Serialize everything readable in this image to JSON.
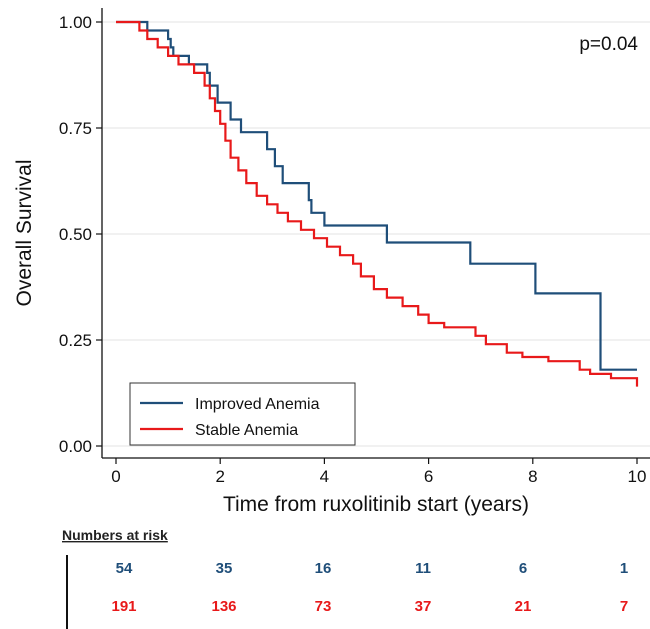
{
  "chart_data": {
    "type": "line",
    "subtype": "kaplan-meier step curve",
    "title": "",
    "xlabel": "Time from ruxolitinib start (years)",
    "ylabel": "Overall Survival",
    "xlim": [
      0,
      10
    ],
    "ylim": [
      0,
      1
    ],
    "xticks": [
      0,
      2,
      4,
      6,
      8,
      10
    ],
    "yticks": [
      0.0,
      0.25,
      0.5,
      0.75,
      1.0
    ],
    "xtick_labels": [
      "0",
      "2",
      "4",
      "6",
      "8",
      "10"
    ],
    "ytick_labels": [
      "0.00",
      "0.25",
      "0.50",
      "0.75",
      "1.00"
    ],
    "grid": "horizontal",
    "annotation": "p=0.04",
    "legend_position": "bottom-left",
    "series": [
      {
        "name": "Improved Anemia",
        "color": "#1f4e79",
        "x": [
          0,
          0.6,
          1.0,
          1.05,
          1.1,
          1.4,
          1.75,
          1.8,
          1.95,
          2.2,
          2.4,
          2.9,
          3.05,
          3.2,
          3.7,
          3.75,
          4.0,
          5.2,
          6.8,
          8.05,
          9.3,
          10
        ],
        "y": [
          1.0,
          0.98,
          0.96,
          0.94,
          0.92,
          0.9,
          0.88,
          0.85,
          0.81,
          0.77,
          0.74,
          0.7,
          0.66,
          0.62,
          0.58,
          0.55,
          0.52,
          0.48,
          0.43,
          0.36,
          0.18,
          0.18
        ]
      },
      {
        "name": "Stable Anemia",
        "color": "#e8191a",
        "x": [
          0,
          0.45,
          0.6,
          0.8,
          1.0,
          1.2,
          1.5,
          1.7,
          1.8,
          1.9,
          2.0,
          2.1,
          2.2,
          2.35,
          2.5,
          2.7,
          2.9,
          3.1,
          3.3,
          3.55,
          3.8,
          4.05,
          4.3,
          4.55,
          4.7,
          4.95,
          5.2,
          5.5,
          5.8,
          6.0,
          6.3,
          6.9,
          7.1,
          7.5,
          7.8,
          8.3,
          8.9,
          9.1,
          9.5,
          10
        ],
        "y": [
          1.0,
          0.98,
          0.96,
          0.94,
          0.92,
          0.9,
          0.88,
          0.85,
          0.82,
          0.79,
          0.76,
          0.72,
          0.68,
          0.65,
          0.62,
          0.59,
          0.57,
          0.55,
          0.53,
          0.51,
          0.49,
          0.47,
          0.45,
          0.43,
          0.4,
          0.37,
          0.35,
          0.33,
          0.31,
          0.29,
          0.28,
          0.26,
          0.24,
          0.22,
          0.21,
          0.2,
          0.18,
          0.17,
          0.16,
          0.14
        ]
      }
    ],
    "risk_table": {
      "heading": "Numbers at risk",
      "times": [
        0,
        2,
        4,
        6,
        8,
        10
      ],
      "rows": [
        {
          "series": "Improved Anemia",
          "color": "#1f4e79",
          "values": [
            "54",
            "35",
            "16",
            "11",
            "6",
            "1"
          ]
        },
        {
          "series": "Stable Anemia",
          "color": "#e8191a",
          "values": [
            "191",
            "136",
            "73",
            "37",
            "21",
            "7"
          ]
        }
      ]
    }
  }
}
